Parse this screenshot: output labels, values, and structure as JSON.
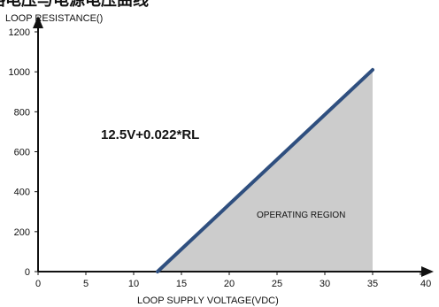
{
  "chart_data": {
    "type": "area",
    "title_clipped": "路电压与电源电压曲线",
    "ylabel": "LOOP RESISTANCE()",
    "xlabel": "LOOP SUPPLY VOLTAGE(VDC)",
    "formula": "12.5V+0.022*RL",
    "region_label": "OPERATING REGION",
    "xlim": [
      0,
      40
    ],
    "ylim": [
      0,
      1200
    ],
    "x_ticks": [
      0,
      5,
      10,
      15,
      20,
      25,
      30,
      35,
      40
    ],
    "y_ticks": [
      0,
      200,
      400,
      600,
      800,
      1000,
      1200
    ],
    "series": [
      {
        "x": [
          12.5,
          35
        ],
        "y": [
          0,
          1010
        ]
      }
    ],
    "region": {
      "x": [
        12.5,
        35,
        35
      ],
      "y": [
        0,
        1010,
        0
      ]
    },
    "colors": {
      "line": "#2f4f7f",
      "area": "#cccccc",
      "axis": "#111111"
    }
  }
}
